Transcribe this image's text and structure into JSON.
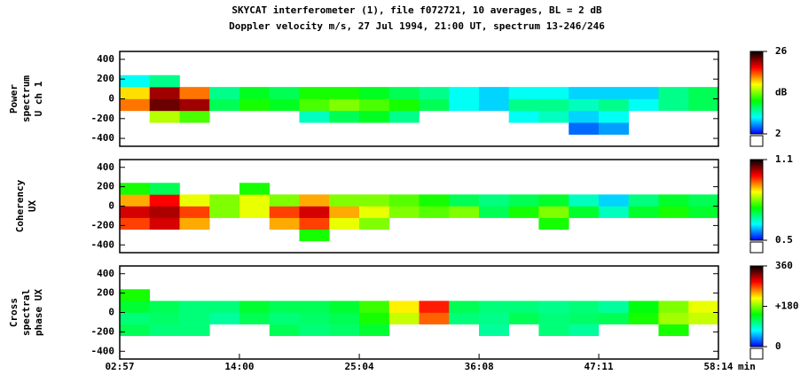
{
  "title": [
    "SKYCAT interferometer (1), file f072721, 10 averages, BL = 2 dB",
    "Doppler velocity m/s, 27 Jul 1994, 21:00 UT, spectrum 13-246/246"
  ],
  "chart_data": [
    {
      "type": "heatmap",
      "ylabel": [
        "Power",
        "spectrum",
        "U ch 1"
      ],
      "xlim": [
        2.95,
        58.23
      ],
      "ylim": [
        -480,
        480
      ],
      "yticks": [
        -400,
        -200,
        0,
        200,
        400
      ],
      "x_bins": [
        2.95,
        5.71,
        8.48,
        11.24,
        14.01,
        16.77,
        19.53,
        22.3,
        25.06,
        27.83,
        30.59,
        33.35,
        36.12,
        38.88,
        41.64,
        44.41,
        47.17,
        49.94,
        52.7,
        55.47,
        58.23
      ],
      "y_bins": [
        -480,
        -360,
        -240,
        -120,
        0,
        120,
        240,
        360,
        480
      ],
      "colormap": [
        "#0000ff",
        "#00ffff",
        "#00ff00",
        "#ffff00",
        "#ff0000",
        "#000000"
      ],
      "clim": [
        2,
        26
      ],
      "cticks": [
        2,
        26
      ],
      "clabel": "dB",
      "z": [
        [
          null,
          null,
          null,
          null,
          null,
          null,
          null,
          null,
          null,
          null,
          null,
          null,
          null,
          null,
          null,
          null,
          null,
          null,
          null,
          null
        ],
        [
          null,
          null,
          null,
          null,
          null,
          null,
          null,
          null,
          null,
          null,
          null,
          null,
          null,
          null,
          null,
          4,
          5,
          null,
          null,
          null
        ],
        [
          null,
          15,
          13,
          null,
          null,
          null,
          8,
          10,
          11,
          9,
          null,
          null,
          null,
          7,
          8,
          6,
          7,
          null,
          null,
          null
        ],
        [
          19,
          24,
          23,
          10,
          12,
          11,
          13,
          14,
          13,
          12,
          10,
          7,
          6,
          9,
          9,
          8,
          9,
          7,
          9,
          10
        ],
        [
          17,
          23,
          19,
          9,
          11,
          10,
          12,
          12,
          11,
          10,
          9,
          7,
          6,
          7,
          7,
          6,
          6,
          6,
          9,
          10
        ],
        [
          7,
          9,
          null,
          null,
          null,
          null,
          null,
          null,
          null,
          null,
          null,
          null,
          null,
          null,
          null,
          null,
          null,
          null,
          null,
          null
        ],
        [
          null,
          null,
          null,
          null,
          null,
          null,
          null,
          null,
          null,
          null,
          null,
          null,
          null,
          null,
          null,
          null,
          null,
          null,
          null,
          null
        ],
        [
          null,
          null,
          null,
          null,
          null,
          null,
          null,
          null,
          null,
          null,
          null,
          null,
          null,
          null,
          null,
          null,
          null,
          null,
          null,
          null
        ]
      ]
    },
    {
      "type": "heatmap",
      "ylabel": [
        "Coherency",
        "UX"
      ],
      "xlim": [
        2.95,
        58.23
      ],
      "ylim": [
        -480,
        480
      ],
      "yticks": [
        -400,
        -200,
        0,
        200,
        400
      ],
      "x_bins": [
        2.95,
        5.71,
        8.48,
        11.24,
        14.01,
        16.77,
        19.53,
        22.3,
        25.06,
        27.83,
        30.59,
        33.35,
        36.12,
        38.88,
        41.64,
        44.41,
        47.17,
        49.94,
        52.7,
        55.47,
        58.23
      ],
      "y_bins": [
        -480,
        -360,
        -240,
        -120,
        0,
        120,
        240,
        360,
        480
      ],
      "colormap": [
        "#0000ff",
        "#00ffff",
        "#00ff00",
        "#ffff00",
        "#ff0000",
        "#000000"
      ],
      "clim": [
        0.5,
        1.1
      ],
      "cticks": [
        0.5,
        1.1
      ],
      "z": [
        [
          null,
          null,
          null,
          null,
          null,
          null,
          null,
          null,
          null,
          null,
          null,
          null,
          null,
          null,
          null,
          null,
          null,
          null,
          null,
          null
        ],
        [
          null,
          null,
          null,
          null,
          null,
          null,
          0.75,
          null,
          null,
          null,
          null,
          null,
          null,
          null,
          null,
          null,
          null,
          null,
          null,
          null
        ],
        [
          0.95,
          1.0,
          0.9,
          null,
          null,
          0.9,
          0.95,
          0.85,
          0.8,
          null,
          null,
          null,
          null,
          null,
          0.75,
          null,
          null,
          null,
          null,
          null
        ],
        [
          1.0,
          1.02,
          0.95,
          0.8,
          0.85,
          0.95,
          1.0,
          0.9,
          0.85,
          0.8,
          0.78,
          0.8,
          0.7,
          0.75,
          0.8,
          0.72,
          0.65,
          0.72,
          0.75,
          0.72
        ],
        [
          0.9,
          0.98,
          0.85,
          0.8,
          0.85,
          0.8,
          0.9,
          0.8,
          0.8,
          0.78,
          0.75,
          0.7,
          0.68,
          0.7,
          0.72,
          0.65,
          0.6,
          0.68,
          0.72,
          0.7
        ],
        [
          0.75,
          0.7,
          null,
          null,
          0.75,
          null,
          null,
          null,
          null,
          null,
          null,
          null,
          null,
          null,
          null,
          null,
          null,
          null,
          null,
          null
        ],
        [
          null,
          null,
          null,
          null,
          null,
          null,
          null,
          null,
          null,
          null,
          null,
          null,
          null,
          null,
          null,
          null,
          null,
          null,
          null,
          null
        ],
        [
          null,
          null,
          null,
          null,
          null,
          null,
          null,
          null,
          null,
          null,
          null,
          null,
          null,
          null,
          null,
          null,
          null,
          null,
          null,
          null
        ]
      ]
    },
    {
      "type": "heatmap",
      "ylabel": [
        "Cross",
        "spectral",
        "phase UX"
      ],
      "xlim": [
        2.95,
        58.23
      ],
      "ylim": [
        -480,
        480
      ],
      "yticks": [
        -400,
        -200,
        0,
        200,
        400
      ],
      "xticks": [
        {
          "value": 2.95,
          "label": "02:57"
        },
        {
          "value": 14.0,
          "label": "14:00"
        },
        {
          "value": 25.07,
          "label": "25:04"
        },
        {
          "value": 36.13,
          "label": "36:08"
        },
        {
          "value": 47.18,
          "label": "47:11"
        },
        {
          "value": 58.23,
          "label": "58:14"
        }
      ],
      "xlabel": "min",
      "x_bins": [
        2.95,
        5.71,
        8.48,
        11.24,
        14.01,
        16.77,
        19.53,
        22.3,
        25.06,
        27.83,
        30.59,
        33.35,
        36.12,
        38.88,
        41.64,
        44.41,
        47.17,
        49.94,
        52.7,
        55.47,
        58.23
      ],
      "y_bins": [
        -480,
        -360,
        -240,
        -120,
        0,
        120,
        240,
        360,
        480
      ],
      "colormap": [
        "#0000ff",
        "#00ffff",
        "#00ff00",
        "#ffff00",
        "#ff0000",
        "#000000"
      ],
      "clim": [
        0,
        360
      ],
      "cticks": [
        0,
        {
          "value": 180,
          "label": "+180"
        },
        360
      ],
      "z": [
        [
          null,
          null,
          null,
          null,
          null,
          null,
          null,
          null,
          null,
          null,
          null,
          null,
          null,
          null,
          null,
          null,
          null,
          null,
          null,
          null
        ],
        [
          null,
          null,
          null,
          null,
          null,
          null,
          null,
          null,
          null,
          null,
          null,
          null,
          null,
          null,
          null,
          null,
          null,
          null,
          null,
          null
        ],
        [
          120,
          110,
          110,
          null,
          null,
          120,
          110,
          115,
          130,
          null,
          null,
          null,
          100,
          null,
          110,
          100,
          null,
          null,
          150,
          null
        ],
        [
          110,
          115,
          110,
          100,
          120,
          110,
          115,
          120,
          150,
          200,
          260,
          110,
          105,
          120,
          110,
          115,
          120,
          150,
          190,
          200
        ],
        [
          130,
          120,
          110,
          110,
          130,
          120,
          120,
          130,
          160,
          220,
          280,
          120,
          110,
          110,
          105,
          110,
          100,
          140,
          180,
          210
        ],
        [
          150,
          null,
          null,
          null,
          null,
          null,
          null,
          null,
          null,
          null,
          null,
          null,
          null,
          null,
          null,
          null,
          null,
          null,
          null,
          null
        ],
        [
          null,
          null,
          null,
          null,
          null,
          null,
          null,
          null,
          null,
          null,
          null,
          null,
          null,
          null,
          null,
          null,
          null,
          null,
          null,
          null
        ],
        [
          null,
          null,
          null,
          null,
          null,
          null,
          null,
          null,
          null,
          null,
          null,
          null,
          null,
          null,
          null,
          null,
          null,
          null,
          null,
          null
        ]
      ]
    }
  ]
}
